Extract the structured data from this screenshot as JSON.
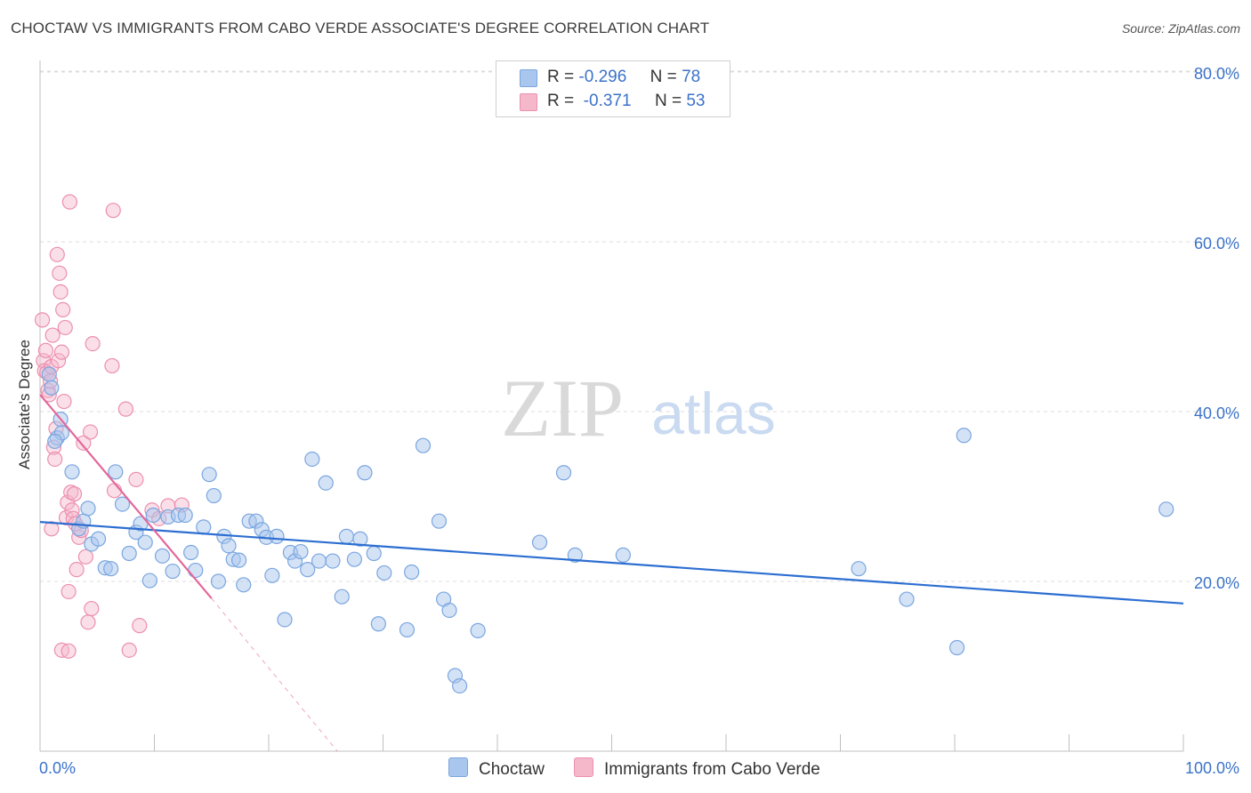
{
  "title": "CHOCTAW VS IMMIGRANTS FROM CABO VERDE ASSOCIATE'S DEGREE CORRELATION CHART",
  "source": "Source: ZipAtlas.com",
  "watermark": {
    "zip": "ZIP",
    "atlas": "atlas"
  },
  "legend": {
    "row1": {
      "r_label": "R =",
      "r_value": "-0.296",
      "n_label": "N =",
      "n_value": "78"
    },
    "row2": {
      "r_label": "R =",
      "r_value": "-0.371",
      "n_label": "N =",
      "n_value": "53"
    }
  },
  "bottom_legend": {
    "series1": "Choctaw",
    "series2": "Immigrants from Cabo Verde"
  },
  "colors": {
    "blue_fill": "#a9c6ee",
    "blue_stroke": "#7aa6df",
    "blue_line": "#2c6ed1",
    "pink_fill": "#f5b8cb",
    "pink_stroke": "#ec8fae",
    "pink_line": "#e4679a",
    "axis_text": "#3b72c9",
    "grid": "#dcdcdc"
  },
  "chart_data": {
    "type": "scatter",
    "title": "CHOCTAW VS IMMIGRANTS FROM CABO VERDE ASSOCIATE'S DEGREE CORRELATION CHART",
    "xlabel": "",
    "ylabel": "Associate's Degree",
    "xlim": [
      0,
      100
    ],
    "ylim": [
      0,
      80
    ],
    "x_tick_labels": [
      "0.0%",
      "100.0%"
    ],
    "y_ticks": [
      20,
      40,
      60,
      80
    ],
    "y_tick_labels": [
      "20.0%",
      "40.0%",
      "60.0%",
      "80.0%"
    ],
    "series": [
      {
        "name": "Choctaw",
        "R": -0.296,
        "N": 78,
        "trend": {
          "x": [
            0,
            100
          ],
          "y": [
            27.0,
            17.4
          ]
        },
        "points": [
          [
            0.8,
            44.4
          ],
          [
            1.0,
            42.8
          ],
          [
            1.5,
            36.9
          ],
          [
            1.9,
            37.5
          ],
          [
            1.3,
            36.5
          ],
          [
            1.8,
            39.1
          ],
          [
            2.8,
            32.9
          ],
          [
            3.4,
            26.2
          ],
          [
            3.8,
            27.1
          ],
          [
            4.2,
            28.6
          ],
          [
            4.5,
            24.4
          ],
          [
            5.1,
            25.0
          ],
          [
            5.7,
            21.6
          ],
          [
            6.2,
            21.5
          ],
          [
            6.6,
            32.9
          ],
          [
            7.2,
            29.1
          ],
          [
            7.8,
            23.3
          ],
          [
            8.4,
            25.8
          ],
          [
            8.8,
            26.8
          ],
          [
            9.2,
            24.6
          ],
          [
            9.6,
            20.1
          ],
          [
            9.9,
            27.8
          ],
          [
            10.7,
            23.0
          ],
          [
            11.2,
            27.6
          ],
          [
            11.6,
            21.2
          ],
          [
            12.1,
            27.8
          ],
          [
            12.7,
            27.8
          ],
          [
            13.2,
            23.4
          ],
          [
            13.6,
            21.3
          ],
          [
            14.3,
            26.4
          ],
          [
            14.8,
            32.6
          ],
          [
            15.2,
            30.1
          ],
          [
            15.6,
            20.0
          ],
          [
            16.1,
            25.3
          ],
          [
            16.5,
            24.2
          ],
          [
            16.9,
            22.6
          ],
          [
            17.4,
            22.5
          ],
          [
            17.8,
            19.6
          ],
          [
            18.3,
            27.1
          ],
          [
            18.9,
            27.1
          ],
          [
            19.4,
            26.1
          ],
          [
            19.8,
            25.2
          ],
          [
            20.3,
            20.7
          ],
          [
            20.7,
            25.3
          ],
          [
            21.4,
            15.5
          ],
          [
            21.9,
            23.4
          ],
          [
            22.3,
            22.4
          ],
          [
            22.8,
            23.5
          ],
          [
            23.4,
            21.4
          ],
          [
            23.8,
            34.4
          ],
          [
            24.4,
            22.4
          ],
          [
            25.0,
            31.6
          ],
          [
            25.6,
            22.4
          ],
          [
            26.4,
            18.2
          ],
          [
            26.8,
            25.3
          ],
          [
            27.5,
            22.6
          ],
          [
            28.0,
            25.0
          ],
          [
            28.4,
            32.8
          ],
          [
            29.2,
            23.3
          ],
          [
            29.6,
            15.0
          ],
          [
            30.1,
            21.0
          ],
          [
            32.1,
            14.3
          ],
          [
            32.5,
            21.1
          ],
          [
            33.5,
            36.0
          ],
          [
            34.9,
            27.1
          ],
          [
            35.3,
            17.9
          ],
          [
            35.8,
            16.6
          ],
          [
            36.3,
            8.9
          ],
          [
            36.7,
            7.7
          ],
          [
            38.3,
            14.2
          ],
          [
            43.7,
            24.6
          ],
          [
            45.8,
            32.8
          ],
          [
            46.8,
            23.1
          ],
          [
            51.0,
            23.1
          ],
          [
            71.6,
            21.5
          ],
          [
            75.8,
            17.9
          ],
          [
            80.8,
            37.2
          ],
          [
            80.2,
            12.2
          ],
          [
            98.5,
            28.5
          ]
        ]
      },
      {
        "name": "Immigrants from Cabo Verde",
        "R": -0.371,
        "N": 53,
        "trend": {
          "x": [
            0,
            15
          ],
          "y": [
            42.0,
            18.0
          ]
        },
        "trend_dashed": {
          "x": [
            15,
            26
          ],
          "y": [
            18.0,
            0
          ]
        },
        "points": [
          [
            0.2,
            50.8
          ],
          [
            0.3,
            46.0
          ],
          [
            0.4,
            44.8
          ],
          [
            0.5,
            47.2
          ],
          [
            0.6,
            44.6
          ],
          [
            0.7,
            42.5
          ],
          [
            0.8,
            42.0
          ],
          [
            0.9,
            43.6
          ],
          [
            1.0,
            45.3
          ],
          [
            1.1,
            49.0
          ],
          [
            1.2,
            35.8
          ],
          [
            1.3,
            34.4
          ],
          [
            1.4,
            38.0
          ],
          [
            1.5,
            58.5
          ],
          [
            1.6,
            46.0
          ],
          [
            1.7,
            56.3
          ],
          [
            1.8,
            54.1
          ],
          [
            1.9,
            47.0
          ],
          [
            2.0,
            52.0
          ],
          [
            2.1,
            41.2
          ],
          [
            2.2,
            49.9
          ],
          [
            2.3,
            27.5
          ],
          [
            2.4,
            29.3
          ],
          [
            2.5,
            18.8
          ],
          [
            2.6,
            64.7
          ],
          [
            2.7,
            30.5
          ],
          [
            2.8,
            28.4
          ],
          [
            2.9,
            27.4
          ],
          [
            3.0,
            30.3
          ],
          [
            3.1,
            26.8
          ],
          [
            3.2,
            21.4
          ],
          [
            3.4,
            25.2
          ],
          [
            3.6,
            26.0
          ],
          [
            3.8,
            36.3
          ],
          [
            4.0,
            22.9
          ],
          [
            4.2,
            15.2
          ],
          [
            4.4,
            37.6
          ],
          [
            4.5,
            16.8
          ],
          [
            4.6,
            48.0
          ],
          [
            6.3,
            45.4
          ],
          [
            6.4,
            63.7
          ],
          [
            6.5,
            30.7
          ],
          [
            7.5,
            40.3
          ],
          [
            7.8,
            11.9
          ],
          [
            8.4,
            32.0
          ],
          [
            8.7,
            14.8
          ],
          [
            9.8,
            28.4
          ],
          [
            10.4,
            27.4
          ],
          [
            11.2,
            28.9
          ],
          [
            12.4,
            29.0
          ],
          [
            1.0,
            26.2
          ],
          [
            1.9,
            11.9
          ],
          [
            2.5,
            11.8
          ]
        ]
      }
    ]
  }
}
